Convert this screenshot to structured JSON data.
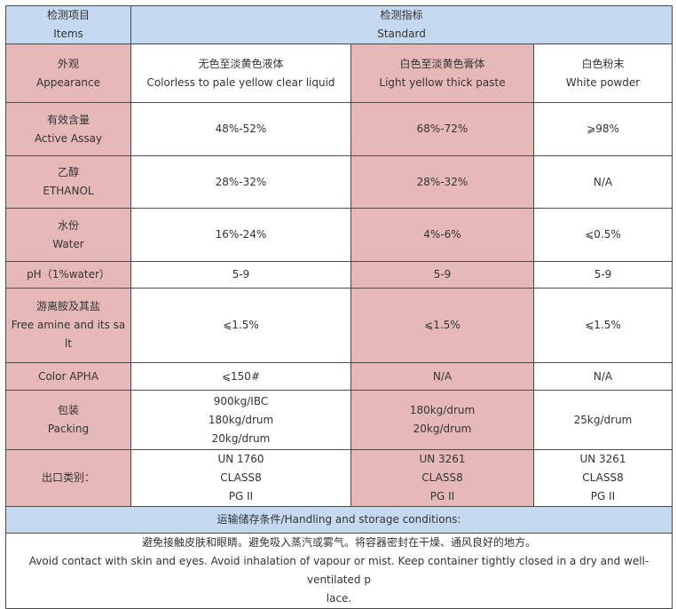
{
  "header": {
    "items": {
      "cn": "检测项目",
      "en": "Items"
    },
    "standard": {
      "cn": "检测指标",
      "en": "Standard"
    }
  },
  "rows": [
    {
      "label": [
        "外观",
        "Appearance"
      ],
      "c1": [
        "无色至淡黄色液体",
        "Colorless to pale yellow clear liquid"
      ],
      "c2": [
        "白色至淡黄色膏体",
        "Light yellow thick paste"
      ],
      "c3": [
        "白色粉末",
        "White powder"
      ]
    },
    {
      "label": [
        "有效含量",
        "Active Assay"
      ],
      "c1": [
        "48%-52%"
      ],
      "c2": [
        "68%-72%"
      ],
      "c3": [
        "⩾98%"
      ]
    },
    {
      "label": [
        "乙醇",
        "ETHANOL"
      ],
      "c1": [
        "28%-32%"
      ],
      "c2": [
        "28%-32%"
      ],
      "c3": [
        "N/A"
      ]
    },
    {
      "label": [
        "水份",
        "Water"
      ],
      "c1": [
        "16%-24%"
      ],
      "c2": [
        "4%-6%"
      ],
      "c3": [
        "⩽0.5%"
      ]
    },
    {
      "label": [
        "pH（1%water）"
      ],
      "c1": [
        "5-9"
      ],
      "c2": [
        "5-9"
      ],
      "c3": [
        "5-9"
      ]
    },
    {
      "label": [
        "游离胺及其盐",
        "Free amine and its sa",
        "lt"
      ],
      "c1": [
        "⩽1.5%"
      ],
      "c2": [
        "⩽1.5%"
      ],
      "c3": [
        "⩽1.5%"
      ]
    },
    {
      "label": [
        "Color APHA"
      ],
      "c1": [
        "⩽150#"
      ],
      "c2": [
        "N/A"
      ],
      "c3": [
        "N/A"
      ]
    },
    {
      "label": [
        "包装",
        "Packing"
      ],
      "c1": [
        "900kg/IBC",
        "180kg/drum",
        "20kg/drum"
      ],
      "c2": [
        "180kg/drum",
        "20kg/drum"
      ],
      "c3": [
        "25kg/drum"
      ]
    },
    {
      "label": [
        "出口类别："
      ],
      "c1": [
        "UN 1760",
        "CLASS8",
        "PG  II"
      ],
      "c2": [
        "UN 3261",
        "CLASS8",
        "PG  II"
      ],
      "c3": [
        "UN 3261",
        "CLASS8",
        "PG  II"
      ]
    }
  ],
  "handling": {
    "title": "运输储存条件/Handling and storage conditions:",
    "lines": [
      "避免接触皮肤和眼睛。避免吸入蒸汽或雾气。将容器密封在干燥、通风良好的地方。",
      "Avoid contact with skin and eyes. Avoid inhalation of vapour or mist. Keep container tightly closed in a dry and well-ventilated p",
      "lace."
    ]
  }
}
